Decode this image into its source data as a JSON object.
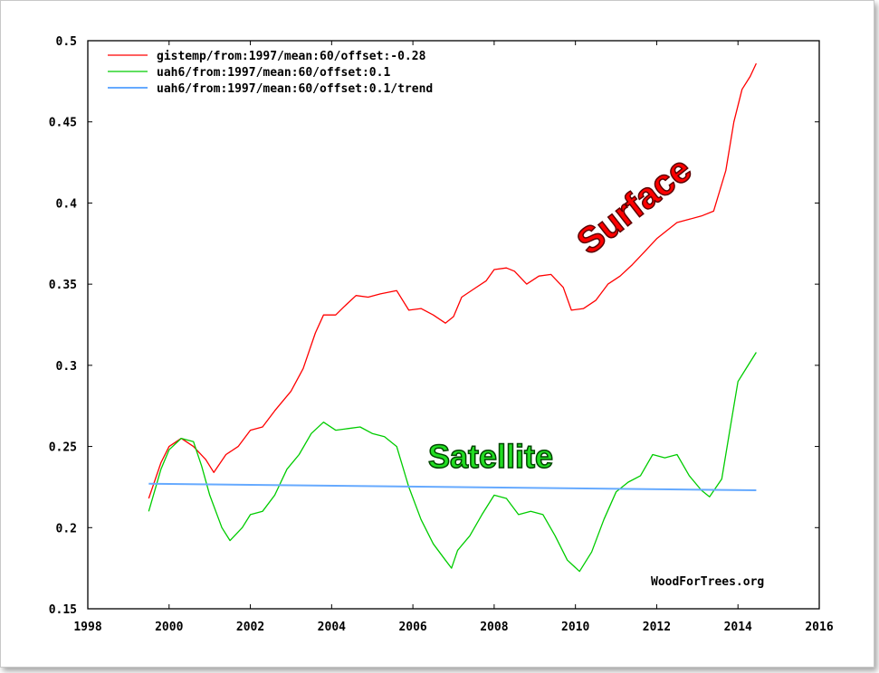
{
  "chart_data": {
    "type": "line",
    "title": "",
    "xlabel": "",
    "ylabel": "",
    "xlim": [
      1998,
      2016
    ],
    "ylim": [
      0.15,
      0.5
    ],
    "x_ticks": [
      1998,
      2000,
      2002,
      2004,
      2006,
      2008,
      2010,
      2012,
      2014,
      2016
    ],
    "y_ticks": [
      0.15,
      0.2,
      0.25,
      0.3,
      0.35,
      0.4,
      0.45,
      0.5
    ],
    "x_tick_labels": [
      "1998",
      "2000",
      "2002",
      "2004",
      "2006",
      "2008",
      "2010",
      "2012",
      "2014",
      "2016"
    ],
    "y_tick_labels": [
      "0.15",
      "0.2",
      "0.25",
      "0.3",
      "0.35",
      "0.4",
      "0.45",
      "0.5"
    ],
    "grid": false,
    "legend_position": "top-left",
    "series": [
      {
        "name": "gistemp/from:1997/mean:60/offset:-0.28",
        "color": "#ff0000",
        "points": [
          [
            1999.5,
            0.218
          ],
          [
            1999.8,
            0.24
          ],
          [
            2000.0,
            0.25
          ],
          [
            2000.3,
            0.255
          ],
          [
            2000.6,
            0.25
          ],
          [
            2000.9,
            0.242
          ],
          [
            2001.1,
            0.234
          ],
          [
            2001.4,
            0.245
          ],
          [
            2001.7,
            0.25
          ],
          [
            2002.0,
            0.26
          ],
          [
            2002.3,
            0.262
          ],
          [
            2002.6,
            0.272
          ],
          [
            2003.0,
            0.284
          ],
          [
            2003.3,
            0.298
          ],
          [
            2003.6,
            0.32
          ],
          [
            2003.8,
            0.331
          ],
          [
            2004.1,
            0.331
          ],
          [
            2004.3,
            0.336
          ],
          [
            2004.6,
            0.343
          ],
          [
            2004.9,
            0.342
          ],
          [
            2005.2,
            0.344
          ],
          [
            2005.6,
            0.346
          ],
          [
            2005.9,
            0.334
          ],
          [
            2006.2,
            0.335
          ],
          [
            2006.5,
            0.331
          ],
          [
            2006.8,
            0.326
          ],
          [
            2007.0,
            0.33
          ],
          [
            2007.2,
            0.342
          ],
          [
            2007.5,
            0.347
          ],
          [
            2007.8,
            0.352
          ],
          [
            2008.0,
            0.359
          ],
          [
            2008.3,
            0.36
          ],
          [
            2008.5,
            0.358
          ],
          [
            2008.8,
            0.35
          ],
          [
            2009.1,
            0.355
          ],
          [
            2009.4,
            0.356
          ],
          [
            2009.7,
            0.348
          ],
          [
            2009.9,
            0.334
          ],
          [
            2010.2,
            0.335
          ],
          [
            2010.5,
            0.34
          ],
          [
            2010.8,
            0.35
          ],
          [
            2011.1,
            0.355
          ],
          [
            2011.4,
            0.362
          ],
          [
            2011.7,
            0.37
          ],
          [
            2012.0,
            0.378
          ],
          [
            2012.3,
            0.384
          ],
          [
            2012.5,
            0.388
          ],
          [
            2012.8,
            0.39
          ],
          [
            2013.1,
            0.392
          ],
          [
            2013.4,
            0.395
          ],
          [
            2013.7,
            0.42
          ],
          [
            2013.9,
            0.45
          ],
          [
            2014.1,
            0.47
          ],
          [
            2014.3,
            0.478
          ],
          [
            2014.45,
            0.486
          ]
        ]
      },
      {
        "name": "uah6/from:1997/mean:60/offset:0.1",
        "color": "#00cc00",
        "points": [
          [
            1999.5,
            0.21
          ],
          [
            1999.8,
            0.236
          ],
          [
            2000.0,
            0.248
          ],
          [
            2000.3,
            0.255
          ],
          [
            2000.6,
            0.253
          ],
          [
            2000.8,
            0.238
          ],
          [
            2001.0,
            0.22
          ],
          [
            2001.3,
            0.2
          ],
          [
            2001.5,
            0.192
          ],
          [
            2001.8,
            0.2
          ],
          [
            2002.0,
            0.208
          ],
          [
            2002.3,
            0.21
          ],
          [
            2002.6,
            0.22
          ],
          [
            2002.9,
            0.236
          ],
          [
            2003.2,
            0.245
          ],
          [
            2003.5,
            0.258
          ],
          [
            2003.8,
            0.265
          ],
          [
            2004.1,
            0.26
          ],
          [
            2004.4,
            0.261
          ],
          [
            2004.7,
            0.262
          ],
          [
            2005.0,
            0.258
          ],
          [
            2005.3,
            0.256
          ],
          [
            2005.6,
            0.25
          ],
          [
            2005.9,
            0.225
          ],
          [
            2006.2,
            0.205
          ],
          [
            2006.5,
            0.19
          ],
          [
            2006.8,
            0.18
          ],
          [
            2006.95,
            0.175
          ],
          [
            2007.1,
            0.186
          ],
          [
            2007.4,
            0.195
          ],
          [
            2007.7,
            0.208
          ],
          [
            2008.0,
            0.22
          ],
          [
            2008.3,
            0.218
          ],
          [
            2008.6,
            0.208
          ],
          [
            2008.9,
            0.21
          ],
          [
            2009.2,
            0.208
          ],
          [
            2009.5,
            0.195
          ],
          [
            2009.8,
            0.18
          ],
          [
            2010.1,
            0.173
          ],
          [
            2010.4,
            0.185
          ],
          [
            2010.7,
            0.205
          ],
          [
            2011.0,
            0.222
          ],
          [
            2011.3,
            0.228
          ],
          [
            2011.6,
            0.232
          ],
          [
            2011.9,
            0.245
          ],
          [
            2012.2,
            0.243
          ],
          [
            2012.5,
            0.245
          ],
          [
            2012.8,
            0.232
          ],
          [
            2013.1,
            0.223
          ],
          [
            2013.3,
            0.219
          ],
          [
            2013.6,
            0.23
          ],
          [
            2013.8,
            0.26
          ],
          [
            2014.0,
            0.29
          ],
          [
            2014.2,
            0.298
          ],
          [
            2014.45,
            0.308
          ]
        ]
      },
      {
        "name": "uah6/from:1997/mean:60/offset:0.1/trend",
        "color": "#66aaff",
        "points": [
          [
            1999.5,
            0.227
          ],
          [
            2014.45,
            0.223
          ]
        ]
      }
    ],
    "annotations": [
      {
        "text": "Surface",
        "color": "#ff0000"
      },
      {
        "text": "Satellite",
        "color": "#22dd22"
      }
    ],
    "credit": "WoodForTrees.org"
  }
}
